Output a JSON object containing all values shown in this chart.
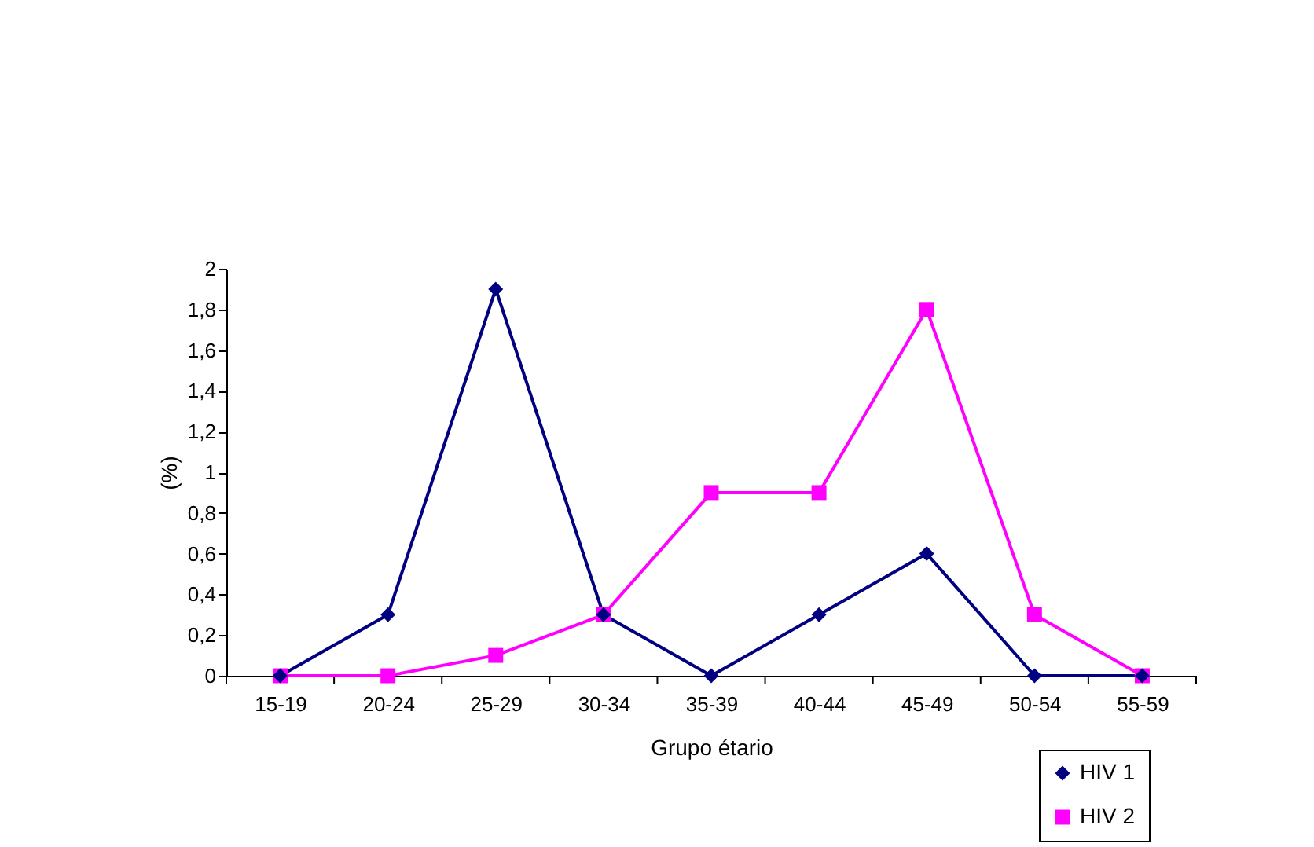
{
  "chart_data": {
    "type": "line",
    "xlabel": "Grupo étario",
    "ylabel": "(%)",
    "categories": [
      "15-19",
      "20-24",
      "25-29",
      "30-34",
      "35-39",
      "40-44",
      "45-49",
      "50-54",
      "55-59"
    ],
    "series": [
      {
        "name": "HIV 1",
        "color": "#000080",
        "marker": "diamond",
        "values": [
          0,
          0.3,
          1.9,
          0.3,
          0,
          0.3,
          0.6,
          0,
          0
        ]
      },
      {
        "name": "HIV 2",
        "color": "#ff00ff",
        "marker": "square",
        "values": [
          0,
          0,
          0.1,
          0.3,
          0.9,
          0.9,
          1.8,
          0.3,
          0
        ]
      }
    ],
    "ylim": [
      0,
      2
    ],
    "yticks": [
      0,
      {
        "value": 0.2,
        "label": "0,2"
      },
      {
        "value": 0.4,
        "label": "0,4"
      },
      {
        "value": 0.6,
        "label": "0,6"
      },
      {
        "value": 0.8,
        "label": "0,8"
      },
      1,
      {
        "value": 1.2,
        "label": "1,2"
      },
      {
        "value": 1.4,
        "label": "1,4"
      },
      {
        "value": 1.6,
        "label": "1,6"
      },
      {
        "value": 1.8,
        "label": "1,8"
      },
      2
    ],
    "grid": false,
    "legend": "bottom right",
    "line_style": "solid"
  }
}
